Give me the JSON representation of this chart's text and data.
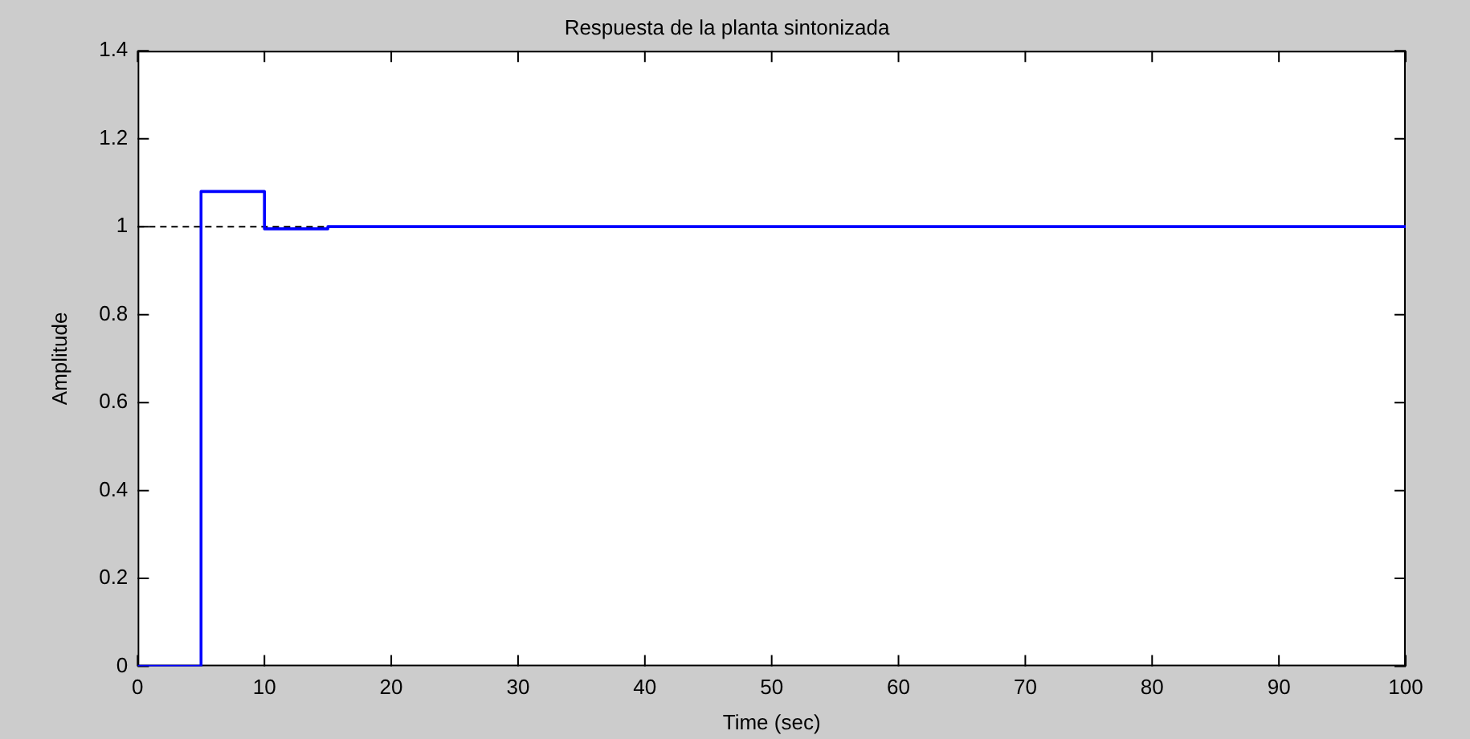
{
  "chart_data": {
    "type": "step",
    "title": "Respuesta de la planta sintonizada",
    "xlabel": "Time (sec)",
    "ylabel": "Amplitude",
    "x": [
      0,
      5,
      10,
      15,
      100
    ],
    "series": [
      {
        "color": "#0000ff",
        "values": [
          0,
          1.08,
          0.995,
          1,
          1
        ]
      }
    ],
    "xlim": [
      0,
      100
    ],
    "xticks": [
      0,
      10,
      20,
      30,
      40,
      50,
      60,
      70,
      80,
      90,
      100
    ],
    "ylim": [
      0,
      1.4
    ],
    "yticks": [
      0,
      0.2,
      0.4,
      0.6,
      0.8,
      1,
      1.2,
      1.4
    ],
    "ref_lines": [
      {
        "axis": "y",
        "value": 1,
        "color": "#000000",
        "line_style": "dashed"
      }
    ],
    "legend": false
  }
}
